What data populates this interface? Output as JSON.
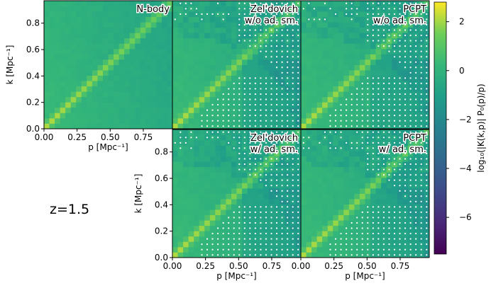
{
  "annotation": "z=1.5",
  "chart_data": {
    "type": "heatmap",
    "x_label": "p [Mpc⁻¹]",
    "y_label": "k [Mpc⁻¹]",
    "x_ticks": [
      "0.00",
      "0.25",
      "0.50",
      "0.75"
    ],
    "y_ticks": [
      "0.0",
      "0.2",
      "0.4",
      "0.6",
      "0.8"
    ],
    "xlim": [
      0,
      0.97
    ],
    "ylim": [
      0,
      0.97
    ],
    "grid_bins": 24,
    "colorbar": {
      "label": "log₁₀(|K(k,p)| P₀(p)/p)",
      "range": [
        -7.5,
        2.8
      ],
      "ticks": [
        "2",
        "0",
        "−2",
        "−4",
        "−6"
      ],
      "tick_values": [
        2,
        0,
        -2,
        -4,
        -6
      ],
      "colormap": "viridis"
    },
    "panels": [
      {
        "row": 0,
        "col": 0,
        "title_lines": [
          "N-body"
        ],
        "dots": false,
        "show_x_ticks": true,
        "show_y_ticks": true
      },
      {
        "row": 0,
        "col": 1,
        "title_lines": [
          "Zel'dovich",
          "w/o ad. sm."
        ],
        "dots": true,
        "show_x_ticks": false,
        "show_y_ticks": false
      },
      {
        "row": 0,
        "col": 2,
        "title_lines": [
          "PCPT",
          "w/o ad. sm."
        ],
        "dots": true,
        "show_x_ticks": false,
        "show_y_ticks": false
      },
      {
        "row": 1,
        "col": 1,
        "title_lines": [
          "Zel'dovich",
          "w/ ad. sm."
        ],
        "dots": true,
        "show_x_ticks": true,
        "show_y_ticks": true
      },
      {
        "row": 1,
        "col": 2,
        "title_lines": [
          "PCPT",
          "w/ ad. sm."
        ],
        "dots": true,
        "show_x_ticks": true,
        "show_y_ticks": false
      }
    ]
  }
}
